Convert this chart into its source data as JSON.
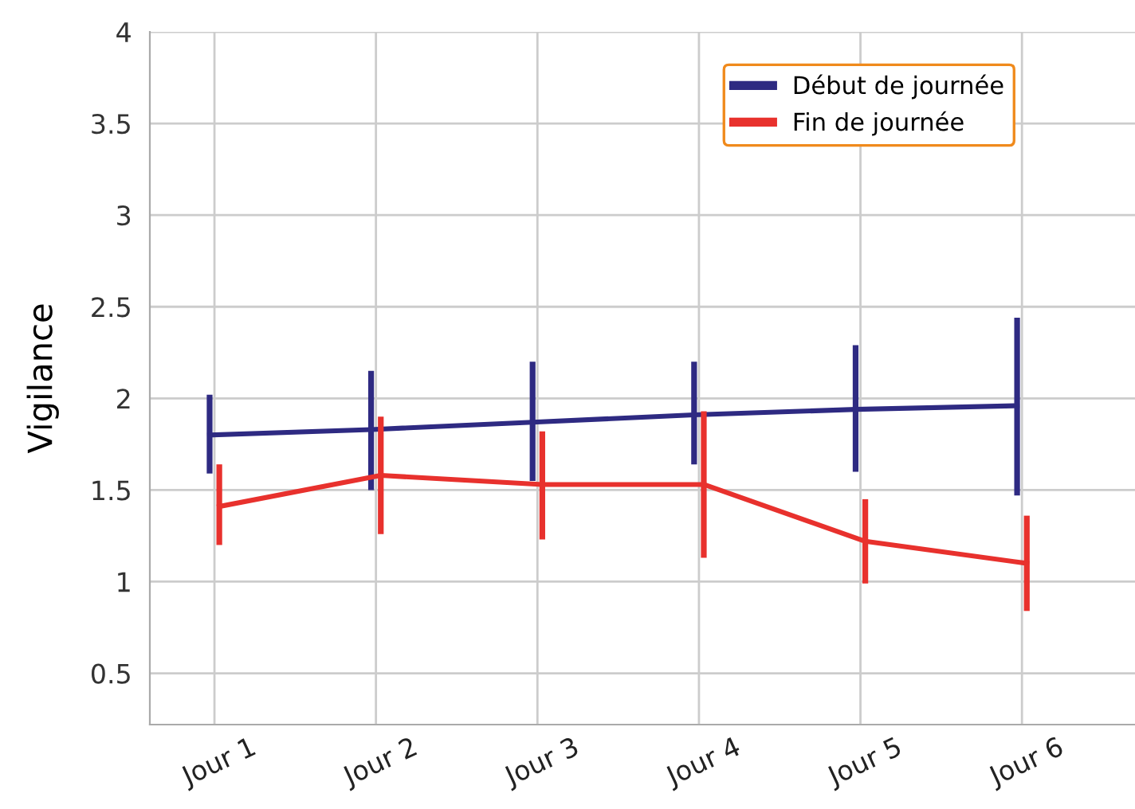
{
  "chart_data": {
    "type": "line",
    "ylabel": "Vigilance",
    "categories": [
      "Jour 1",
      "Jour 2",
      "Jour 3",
      "Jour 4",
      "Jour 5",
      "Jour 6"
    ],
    "ylim": [
      0.22,
      4
    ],
    "yticks": [
      0.5,
      1,
      1.5,
      2,
      2.5,
      3,
      3.5,
      4
    ],
    "grid": true,
    "legend": "top",
    "marker": "none",
    "line_style": "solid",
    "series": [
      {
        "name": "Début de journée",
        "color": "#2e2a82",
        "values": [
          1.8,
          1.83,
          1.87,
          1.91,
          1.94,
          1.96
        ],
        "errors": [
          [
            1.59,
            2.02
          ],
          [
            1.5,
            2.15
          ],
          [
            1.55,
            2.2
          ],
          [
            1.64,
            2.2
          ],
          [
            1.6,
            2.29
          ],
          [
            1.47,
            2.44
          ]
        ]
      },
      {
        "name": "Fin de journée",
        "color": "#e8312d",
        "values": [
          1.41,
          1.58,
          1.53,
          1.53,
          1.22,
          1.1
        ],
        "errors": [
          [
            1.2,
            1.64
          ],
          [
            1.26,
            1.9
          ],
          [
            1.23,
            1.82
          ],
          [
            1.13,
            1.93
          ],
          [
            0.99,
            1.45
          ],
          [
            0.84,
            1.36
          ]
        ]
      }
    ]
  }
}
